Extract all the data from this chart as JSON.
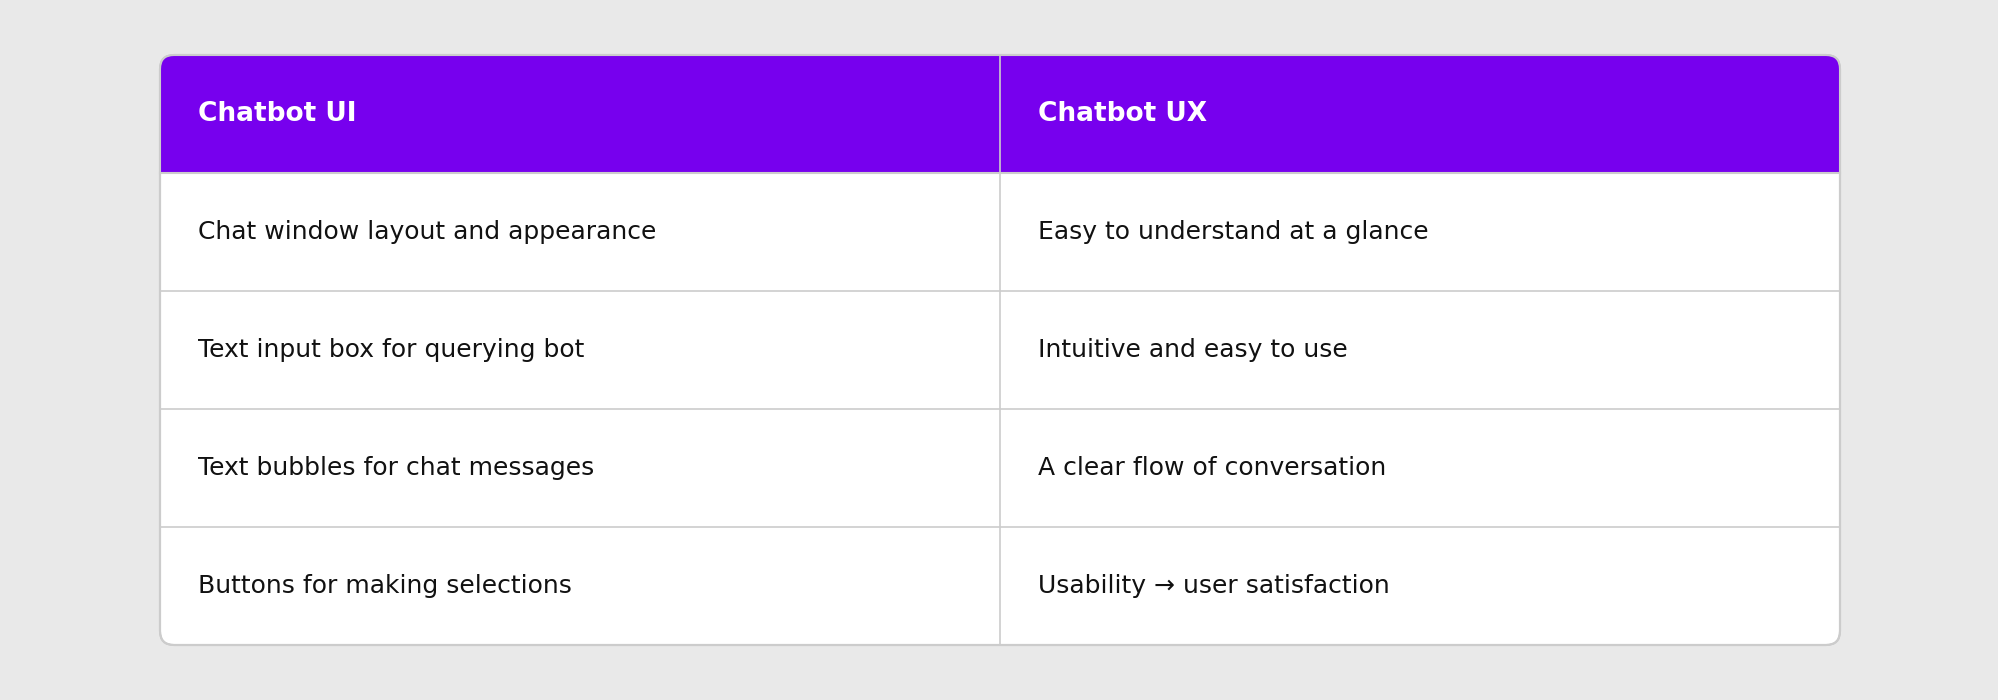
{
  "background_color": "#e9e9e9",
  "table_bg": "#ffffff",
  "header_bg": "#7700ee",
  "header_text_color": "#ffffff",
  "cell_text_color": "#111111",
  "divider_color": "#cccccc",
  "header_row": [
    "Chatbot UI",
    "Chatbot UX"
  ],
  "rows": [
    [
      "Chat window layout and appearance",
      "Easy to understand at a glance"
    ],
    [
      "Text input box for querying bot",
      "Intuitive and easy to use"
    ],
    [
      "Text bubbles for chat messages",
      "A clear flow of conversation"
    ],
    [
      "Buttons for making selections",
      "Usability → user satisfaction"
    ]
  ],
  "header_fontsize": 19,
  "cell_fontsize": 18,
  "fig_width": 19.99,
  "fig_height": 7.0,
  "dpi": 100
}
